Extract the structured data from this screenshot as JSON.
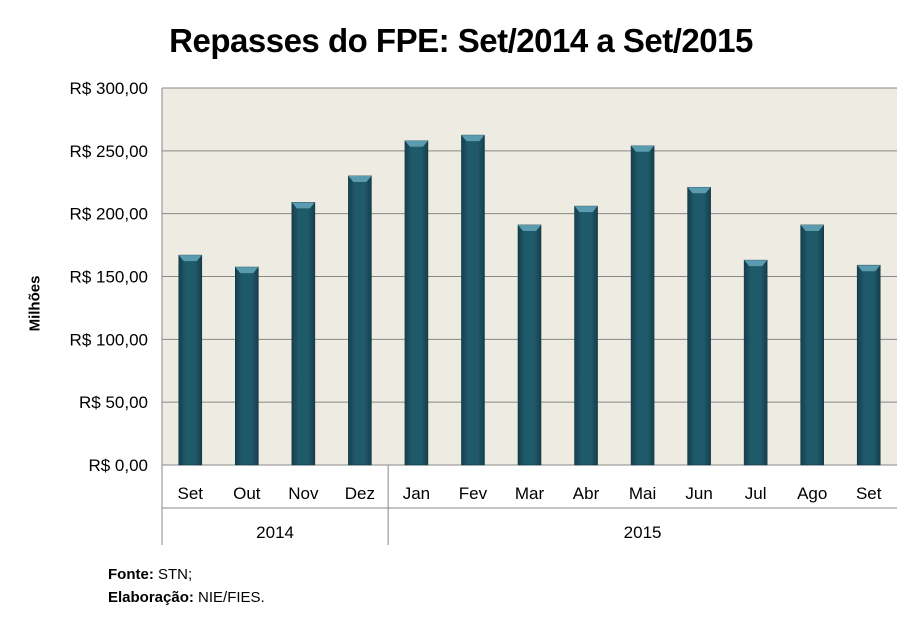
{
  "chart_data": {
    "type": "bar",
    "title": "Repasses do FPE: Set/2014 a Set/2015",
    "ylabel": "Milhões",
    "xlabel": "",
    "categories": [
      "Set",
      "Out",
      "Nov",
      "Dez",
      "Jan",
      "Fev",
      "Mar",
      "Abr",
      "Mai",
      "Jun",
      "Jul",
      "Ago",
      "Set"
    ],
    "year_groups": [
      {
        "label": "2014",
        "count": 4
      },
      {
        "label": "2015",
        "count": 9
      }
    ],
    "values": [
      167,
      157.5,
      209,
      230,
      258,
      262.5,
      191,
      206,
      254,
      221,
      163,
      191,
      159
    ],
    "ylim": [
      0,
      300
    ],
    "yticks": [
      0,
      50,
      100,
      150,
      200,
      250,
      300
    ],
    "ytick_labels": [
      "R$ 0,00",
      "R$ 50,00",
      "R$ 100,00",
      "R$ 150,00",
      "R$ 200,00",
      "R$ 250,00",
      "R$ 300,00"
    ],
    "grid": true,
    "legend": "none",
    "colors": {
      "bar": "#1f5a6b",
      "bar_top": "#5a9bb0",
      "plot_bg": "#eeebe2",
      "grid": "#888888"
    }
  },
  "footer": {
    "source_label": "Fonte:",
    "source_value": "STN;",
    "credit_label": "Elaboração:",
    "credit_value": "NIE/FIES."
  }
}
